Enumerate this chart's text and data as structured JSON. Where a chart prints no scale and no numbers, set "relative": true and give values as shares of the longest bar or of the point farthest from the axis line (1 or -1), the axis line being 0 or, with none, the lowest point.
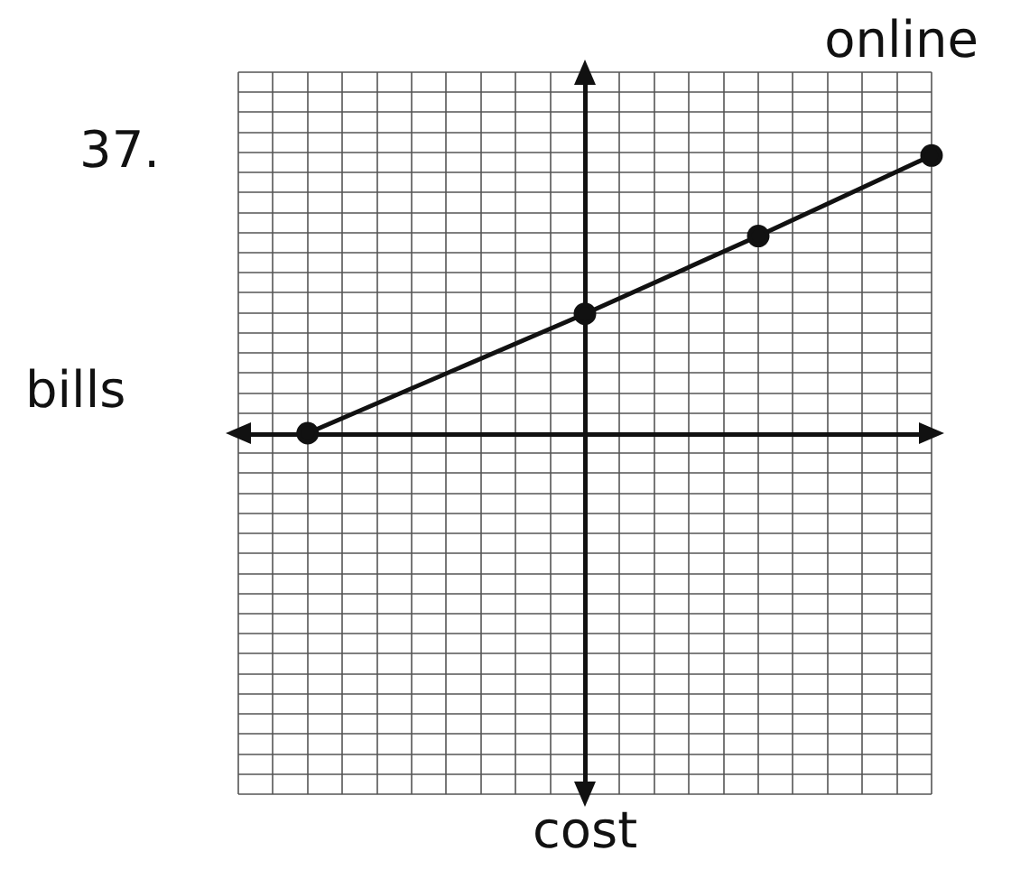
{
  "chart_data": {
    "type": "line",
    "title": "37.",
    "annotations": [
      "online",
      "bills",
      "cost"
    ],
    "relative": true,
    "grid": true,
    "marker": "circle",
    "line_style": "solid",
    "categories": [
      null,
      null,
      null,
      null,
      null,
      null,
      null,
      null,
      null,
      null,
      null,
      null,
      null,
      null,
      null,
      null,
      null,
      null,
      null,
      null,
      null
    ],
    "series": [
      {
        "color": "#111111",
        "values": [
          null,
          null,
          0,
          null,
          null,
          null,
          null,
          null,
          null,
          null,
          0.43,
          null,
          null,
          null,
          null,
          0.71,
          null,
          null,
          null,
          null,
          1
        ]
      }
    ]
  }
}
